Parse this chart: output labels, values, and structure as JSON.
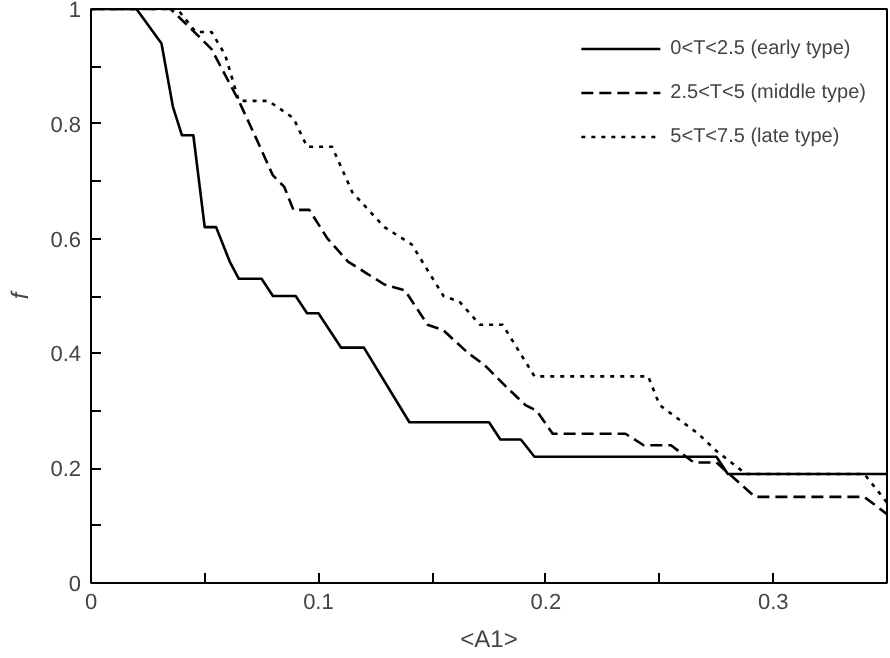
{
  "chart_data": {
    "type": "line",
    "xlabel": "<A1>",
    "ylabel": "f",
    "xlim": [
      0,
      0.35
    ],
    "ylim": [
      0,
      1
    ],
    "xticks": [
      0,
      {
        "value": 0.05,
        "label": null
      },
      0.1,
      {
        "value": 0.15,
        "label": null
      },
      0.2,
      {
        "value": 0.25,
        "label": null
      },
      0.3
    ],
    "yticks": [
      0,
      {
        "value": 0.1,
        "label": null
      },
      0.2,
      {
        "value": 0.3,
        "label": null
      },
      0.4,
      {
        "value": 0.5,
        "label": null
      },
      0.6,
      {
        "value": 0.7,
        "label": null
      },
      0.8,
      {
        "value": 0.9,
        "label": null
      },
      1
    ],
    "grid": false,
    "legend": "top right",
    "marker": "none",
    "series": [
      {
        "name": "0<T<2.5 (early type)",
        "color": "#000000",
        "line_style": "solid",
        "x": [
          0,
          0.02,
          0.031,
          0.036,
          0.04,
          0.045,
          0.05,
          0.055,
          0.061,
          0.065,
          0.075,
          0.08,
          0.09,
          0.095,
          0.1,
          0.11,
          0.12,
          0.14,
          0.175,
          0.18,
          0.189,
          0.195,
          0.275,
          0.28,
          0.35
        ],
        "values": [
          1,
          1,
          0.94,
          0.83,
          0.78,
          0.78,
          0.62,
          0.62,
          0.56,
          0.53,
          0.53,
          0.5,
          0.5,
          0.47,
          0.47,
          0.41,
          0.41,
          0.28,
          0.28,
          0.25,
          0.25,
          0.22,
          0.22,
          0.19,
          0.19
        ]
      },
      {
        "name": "2.5<T<5 (middle type)",
        "color": "#000000",
        "line_style": "dashed",
        "x": [
          0,
          0.035,
          0.048,
          0.053,
          0.065,
          0.072,
          0.08,
          0.085,
          0.089,
          0.096,
          0.104,
          0.113,
          0.121,
          0.129,
          0.138,
          0.148,
          0.155,
          0.166,
          0.173,
          0.183,
          0.191,
          0.196,
          0.203,
          0.235,
          0.243,
          0.255,
          0.265,
          0.275,
          0.292,
          0.34,
          0.35
        ],
        "values": [
          1,
          1,
          0.95,
          0.93,
          0.84,
          0.78,
          0.71,
          0.69,
          0.65,
          0.65,
          0.6,
          0.56,
          0.54,
          0.52,
          0.51,
          0.45,
          0.44,
          0.4,
          0.38,
          0.34,
          0.31,
          0.3,
          0.26,
          0.26,
          0.24,
          0.24,
          0.21,
          0.21,
          0.15,
          0.15,
          0.12
        ]
      },
      {
        "name": "5<T<7.5 (late type)",
        "color": "#000000",
        "line_style": "dotted",
        "x": [
          0,
          0.038,
          0.046,
          0.053,
          0.059,
          0.065,
          0.078,
          0.089,
          0.095,
          0.106,
          0.115,
          0.129,
          0.141,
          0.155,
          0.162,
          0.171,
          0.181,
          0.195,
          0.245,
          0.25,
          0.267,
          0.275,
          0.288,
          0.34,
          0.35
        ],
        "values": [
          1,
          1,
          0.96,
          0.96,
          0.92,
          0.84,
          0.84,
          0.81,
          0.76,
          0.76,
          0.68,
          0.62,
          0.59,
          0.5,
          0.49,
          0.45,
          0.45,
          0.36,
          0.36,
          0.31,
          0.26,
          0.23,
          0.19,
          0.19,
          0.14
        ]
      }
    ]
  }
}
